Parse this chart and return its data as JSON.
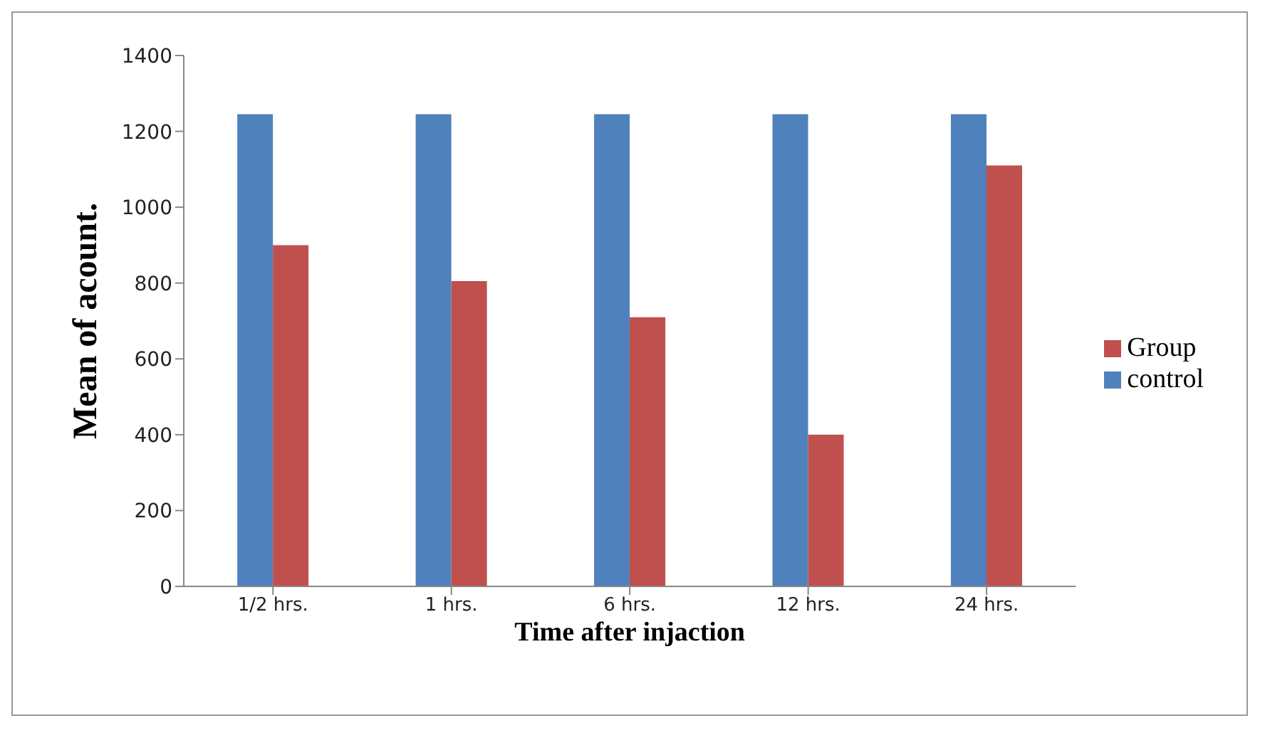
{
  "chart_data": {
    "type": "bar",
    "xlabel": "Time after injaction",
    "ylabel": "Mean of acount.",
    "categories": [
      "1/2 hrs.",
      "1 hrs.",
      "6 hrs.",
      "12 hrs.",
      "24 hrs."
    ],
    "series": [
      {
        "name": "control",
        "color": "#4f81bd",
        "values": [
          1245,
          1245,
          1245,
          1245,
          1245
        ]
      },
      {
        "name": "Group",
        "color": "#c0504d",
        "values": [
          900,
          805,
          710,
          400,
          1110
        ]
      }
    ],
    "ylim": [
      0,
      1400
    ],
    "yticks": [
      0,
      200,
      400,
      600,
      800,
      1000,
      1200,
      1400
    ],
    "grid": false,
    "legend": "right"
  }
}
